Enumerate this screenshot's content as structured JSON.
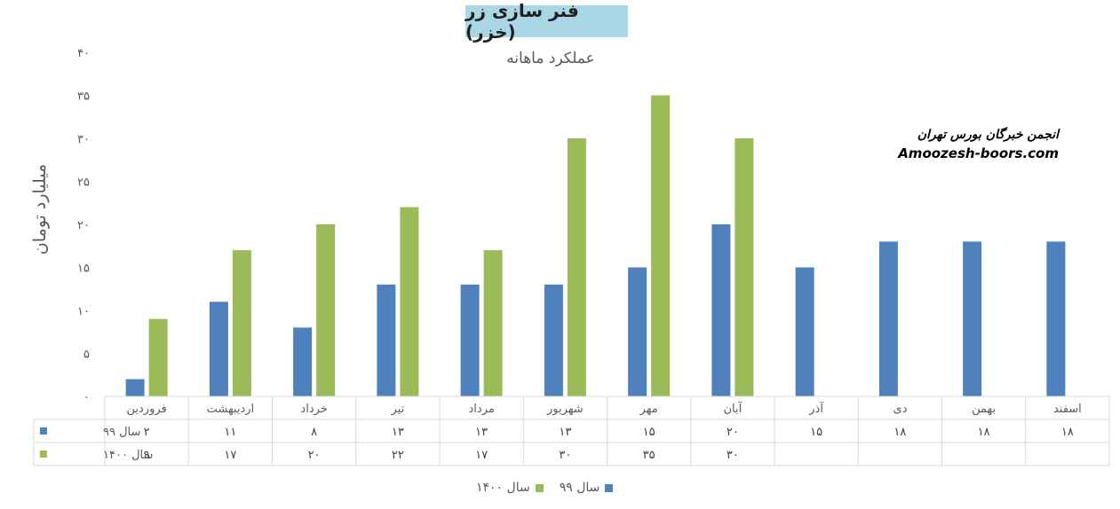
{
  "chart_data": {
    "type": "bar",
    "title": "فنر سازی زر (خزر)",
    "subtitle": "عملکرد ماهانه",
    "ylabel": "میلیارد تومان",
    "ylim": [
      0,
      40
    ],
    "yticks": [
      "۰",
      "۵",
      "۱۰",
      "۱۵",
      "۲۰",
      "۲۵",
      "۳۰",
      "۳۵",
      "۴۰"
    ],
    "categories": [
      "فروردین",
      "اردیبهشت",
      "خرداد",
      "تیر",
      "مرداد",
      "شهریور",
      "مهر",
      "آبان",
      "آذر",
      "دی",
      "بهمن",
      "اسفند"
    ],
    "series": [
      {
        "name": "سال ۹۹",
        "color": "#4f81bd",
        "values": [
          2,
          11,
          8,
          13,
          13,
          13,
          15,
          20,
          15,
          18,
          18,
          18
        ],
        "labels": [
          "۲",
          "۱۱",
          "۸",
          "۱۳",
          "۱۳",
          "۱۳",
          "۱۵",
          "۲۰",
          "۱۵",
          "۱۸",
          "۱۸",
          "۱۸"
        ]
      },
      {
        "name": "سال ۱۴۰۰",
        "color": "#9bbb59",
        "values": [
          9,
          17,
          20,
          22,
          17,
          30,
          35,
          30,
          null,
          null,
          null,
          null
        ],
        "labels": [
          "۹",
          "۱۷",
          "۲۰",
          "۲۲",
          "۱۷",
          "۳۰",
          "۳۵",
          "۳۰",
          "",
          "",
          "",
          ""
        ]
      }
    ],
    "grid": false,
    "legend_position": "bottom",
    "data_table": true
  },
  "watermark": {
    "line1": "انجمن خبرگان بورس تهران",
    "line2": "Amoozesh-boors.com"
  }
}
